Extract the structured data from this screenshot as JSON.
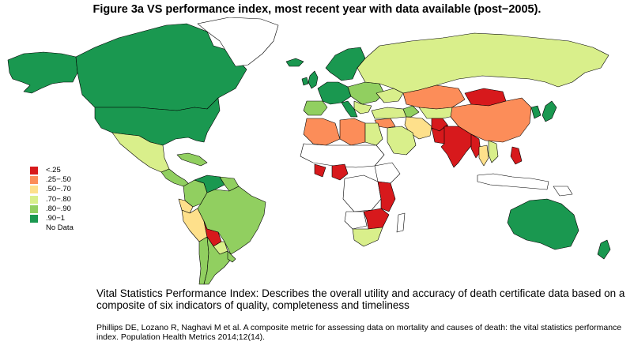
{
  "title": "Figure 3a VS performance index, most recent year with data available (post−2005).",
  "colors": {
    "lt25": "#d7191c",
    "r25_50": "#fc8d59",
    "r50_70": "#fee08b",
    "r70_80": "#d9ef8b",
    "r80_90": "#91cf60",
    "r90_1": "#1a9850",
    "nodata": "#ffffff",
    "border": "#000000"
  },
  "legend": [
    {
      "label": "<.25",
      "color": "#d7191c"
    },
    {
      "label": ".25−.50",
      "color": "#fc8d59"
    },
    {
      "label": ".50−.70",
      "color": "#fee08b"
    },
    {
      "label": ".70−.80",
      "color": "#d9ef8b"
    },
    {
      "label": ".80−.90",
      "color": "#91cf60"
    },
    {
      "label": ".90−1",
      "color": "#1a9850"
    },
    {
      "label": "No Data",
      "color": ""
    }
  ],
  "description": "Vital Statistics Performance Index: Describes the overall utility and accuracy of death certificate data based on a composite of six indicators of quality, completeness and timeliness",
  "citation": "Phillips DE, Lozano R, Naghavi M et al. A composite metric for assessing data on mortality and causes of death: the vital statistics performance index. Population Health Metrics 2014;12(14)."
}
